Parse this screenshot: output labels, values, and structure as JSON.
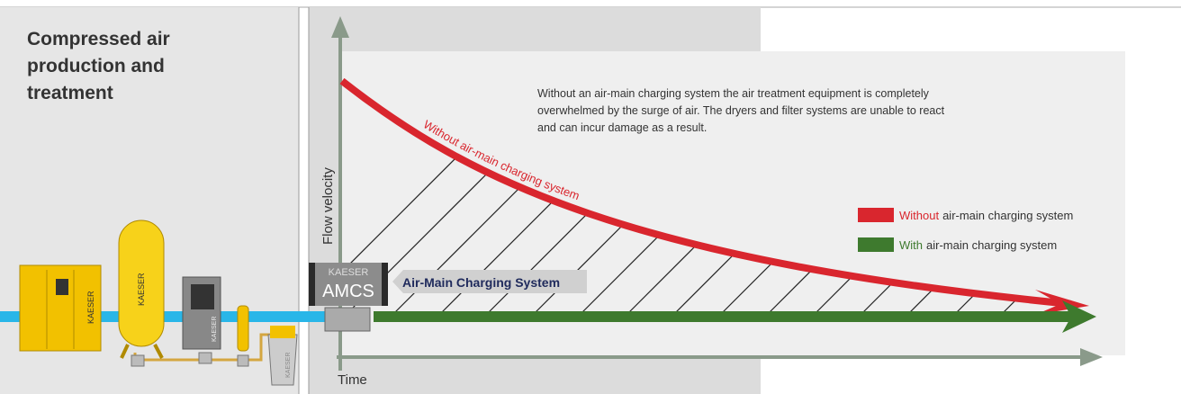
{
  "panel": {
    "title_lines": [
      "Compressed air",
      "production and",
      "treatment"
    ]
  },
  "equipment_labels": [
    "KAESER",
    "KAESER",
    "KAESER",
    "KAESER"
  ],
  "diagram": {
    "y_axis_label": "Flow velocity",
    "x_axis_label": "Time",
    "description_lines": [
      "Without an air-main charging system the air treatment equipment is completely",
      "overwhelmed by the surge of air. The dryers and filter systems are unable to react",
      "and can incur damage as a result."
    ],
    "curve_label": "Without air-main charging system",
    "device": {
      "brand": "KAESER",
      "name": "AMCS"
    },
    "callout": "Air-Main Charging System",
    "legend": [
      {
        "highlight": "Without",
        "text": "air-main charging system"
      },
      {
        "highlight": "With",
        "text": "air-main charging system"
      }
    ]
  }
}
